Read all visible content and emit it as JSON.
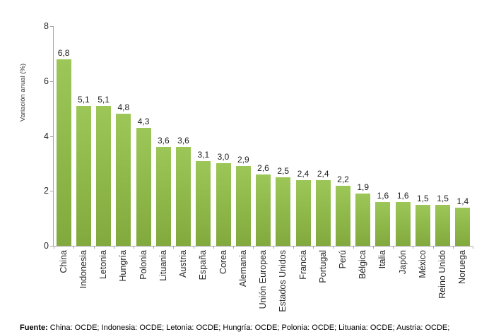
{
  "chart_data": {
    "type": "bar",
    "title": "",
    "xlabel": "",
    "ylabel": "Variación anual (%)",
    "ylim": [
      0,
      8
    ],
    "yticks": [
      0,
      2,
      4,
      6,
      8
    ],
    "grid": false,
    "legend": false,
    "categories": [
      "China",
      "Indonesia",
      "Letonia",
      "Hungría",
      "Polonia",
      "Lituania",
      "Austria",
      "España",
      "Corea",
      "Alemania",
      "Unión Europea",
      "Estados Unidos",
      "Francia",
      "Portugal",
      "Perú",
      "Bélgica",
      "Italia",
      "Japón",
      "México",
      "Reino Unido",
      "Noruega"
    ],
    "values": [
      6.8,
      5.1,
      5.1,
      4.8,
      4.3,
      3.6,
      3.6,
      3.1,
      3.0,
      2.9,
      2.6,
      2.5,
      2.4,
      2.4,
      2.2,
      1.9,
      1.6,
      1.6,
      1.5,
      1.5,
      1.4
    ],
    "value_labels": [
      "6,8",
      "5,1",
      "5,1",
      "4,8",
      "4,3",
      "3,6",
      "3,6",
      "3,1",
      "3,0",
      "2,9",
      "2,6",
      "2,5",
      "2,4",
      "2,4",
      "2,2",
      "1,9",
      "1,6",
      "1,6",
      "1,5",
      "1,5",
      "1,4"
    ]
  },
  "colors": {
    "bar_top": "#9cc758",
    "bar_bottom": "#82a93d",
    "axis": "#a6a6a6",
    "text": "#262626"
  },
  "footer": {
    "source_bold": "Fuente:",
    "source_text": " China: OCDE; Indonesia: OCDE; Letonia: OCDE; Hungría: OCDE; Polonia: OCDE; Lituania: OCDE; Austria: OCDE;"
  }
}
